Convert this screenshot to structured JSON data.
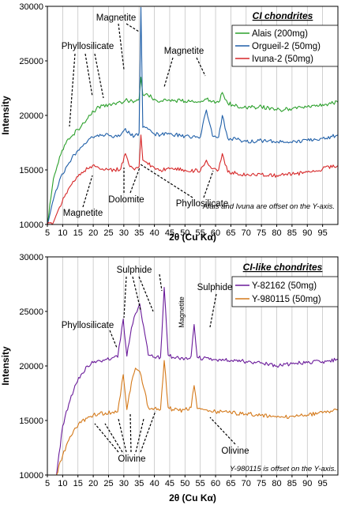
{
  "chart_data": [
    {
      "type": "line",
      "title": "CI chondrites",
      "xlabel": "2θ (Cu Kα)",
      "ylabel": "Intensity",
      "xlim": [
        5,
        100
      ],
      "ylim": [
        10000,
        30000
      ],
      "xticks": [
        "5",
        "10",
        "15",
        "20",
        "25",
        "30",
        "35",
        "40",
        "45",
        "50",
        "55",
        "60",
        "65",
        "70",
        "75",
        "80",
        "85",
        "90",
        "95"
      ],
      "yticks": [
        "10000",
        "15000",
        "20000",
        "25000",
        "30000"
      ],
      "grid": "vertical",
      "legend_position": "top-right",
      "note": "Alais and Ivuna are offset on the Y-axis.",
      "series": [
        {
          "name": "Alais (200mg)",
          "color": "#2ca02c",
          "x": [
            5,
            7,
            9,
            11,
            13,
            15,
            17,
            19,
            21,
            23,
            25,
            27,
            29,
            30.5,
            32,
            33.5,
            35,
            35.6,
            36.2,
            37.5,
            40,
            42,
            45,
            50,
            55,
            57,
            59,
            61,
            62.2,
            64,
            67,
            70,
            75,
            80,
            85,
            90,
            95,
            100
          ],
          "y": [
            10000,
            14200,
            16200,
            17400,
            18100,
            18700,
            19300,
            20000,
            20600,
            20900,
            21000,
            21100,
            21200,
            21400,
            21300,
            21300,
            21500,
            23500,
            21900,
            22000,
            21500,
            21300,
            21400,
            21300,
            21200,
            21500,
            21300,
            21200,
            22100,
            21100,
            20900,
            20700,
            20800,
            20500,
            20600,
            20800,
            21000,
            21200
          ]
        },
        {
          "name": "Orgueil-2 (50mg)",
          "color": "#1f5fa8",
          "x": [
            5,
            7,
            9,
            11,
            13,
            15,
            17,
            19,
            21,
            23,
            25,
            27,
            29,
            30.5,
            32,
            33.5,
            35,
            35.6,
            36.2,
            37.5,
            40,
            42,
            45,
            50,
            55,
            57,
            59,
            61,
            62.2,
            64,
            67,
            70,
            75,
            80,
            85,
            90,
            95,
            100
          ],
          "y": [
            10000,
            12300,
            14100,
            15200,
            16100,
            16800,
            17400,
            17900,
            18100,
            18200,
            18200,
            18100,
            18200,
            18800,
            18300,
            18100,
            18400,
            29900,
            18900,
            18900,
            18300,
            18200,
            18300,
            18100,
            18000,
            20500,
            18100,
            18000,
            20000,
            17900,
            17800,
            17600,
            17700,
            17600,
            17500,
            17700,
            17900,
            18200
          ]
        },
        {
          "name": "Ivuna-2 (50mg)",
          "color": "#d62728",
          "x": [
            5,
            7,
            9,
            11,
            13,
            15,
            17,
            19,
            21,
            23,
            25,
            27,
            29,
            30.5,
            32,
            33.5,
            35,
            35.6,
            36.2,
            37.5,
            40,
            42,
            45,
            50,
            55,
            57,
            59,
            61,
            62.2,
            64,
            67,
            70,
            75,
            80,
            85,
            90,
            95,
            100
          ],
          "y": [
            10000,
            10200,
            11600,
            12800,
            13700,
            14400,
            14900,
            15300,
            15300,
            15100,
            15000,
            15000,
            15100,
            16500,
            15300,
            15000,
            15300,
            18200,
            15900,
            15700,
            15200,
            15000,
            15100,
            15000,
            14900,
            15900,
            15100,
            15000,
            16500,
            14800,
            14700,
            14500,
            14600,
            14500,
            14600,
            14800,
            15100,
            15400
          ]
        }
      ],
      "annotations": [
        "Magnetite",
        "Phyllosilicate",
        "Magnetite",
        "Dolomite",
        "Magnetite",
        "Phyllosilicate"
      ]
    },
    {
      "type": "line",
      "title": "CI-like chondrites",
      "xlabel": "2θ (Cu Kα)",
      "ylabel": "Intensity",
      "xlim": [
        5,
        100
      ],
      "ylim": [
        10000,
        30000
      ],
      "xticks": [
        "5",
        "10",
        "15",
        "20",
        "25",
        "30",
        "35",
        "40",
        "45",
        "50",
        "55",
        "60",
        "65",
        "70",
        "75",
        "80",
        "85",
        "90",
        "95"
      ],
      "yticks": [
        "10000",
        "15000",
        "20000",
        "25000",
        "30000"
      ],
      "grid": "vertical",
      "legend_position": "top-right",
      "note": "Y-980115 is offset on the Y-axis.",
      "series": [
        {
          "name": "Y-82162 (50mg)",
          "color": "#6a1b9a",
          "x": [
            8,
            10,
            12,
            14,
            16,
            18,
            20,
            22,
            24,
            26,
            28,
            29.8,
            31,
            32.5,
            33.8,
            35.2,
            36.5,
            38,
            40,
            42,
            43.2,
            44.5,
            46,
            48,
            50,
            52,
            53,
            54,
            56,
            58,
            60,
            65,
            70,
            75,
            80,
            85,
            90,
            95,
            100
          ],
          "y": [
            10000,
            14500,
            16500,
            18200,
            19200,
            20000,
            20300,
            20500,
            20600,
            20700,
            20800,
            24300,
            20900,
            23500,
            24800,
            25700,
            23600,
            21000,
            20800,
            20800,
            27200,
            21000,
            20800,
            20700,
            20700,
            20900,
            23800,
            20800,
            20700,
            20600,
            20600,
            20500,
            20400,
            20300,
            20000,
            20200,
            20300,
            20400,
            20600
          ]
        },
        {
          "name": "Y-980115 (50mg)",
          "color": "#d4791a",
          "x": [
            8,
            10,
            12,
            14,
            16,
            18,
            20,
            22,
            24,
            26,
            28,
            29.8,
            31,
            32.5,
            33.8,
            35.2,
            36.5,
            38,
            40,
            42,
            43.2,
            44.5,
            46,
            48,
            50,
            52,
            53,
            54,
            56,
            58,
            60,
            65,
            70,
            75,
            80,
            85,
            90,
            95,
            100
          ],
          "y": [
            10000,
            11800,
            13200,
            14300,
            14800,
            15200,
            15500,
            15600,
            15700,
            15700,
            15800,
            19200,
            16000,
            18500,
            19800,
            19500,
            18000,
            16200,
            16100,
            16000,
            20500,
            16200,
            16000,
            15900,
            16000,
            16200,
            18200,
            16100,
            16000,
            15900,
            15800,
            15700,
            15600,
            15500,
            15300,
            15400,
            15500,
            15700,
            16000
          ]
        }
      ],
      "annotations": [
        "Sulphide",
        "Sulphide",
        "Magnetite",
        "Phyllosilicate",
        "Olivine",
        "Olivine"
      ]
    }
  ]
}
